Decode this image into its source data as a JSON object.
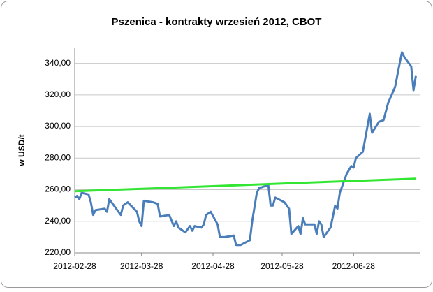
{
  "chart_data": {
    "type": "line",
    "title": "Pszenica - kontrakty wrzesień 2012, CBOT",
    "y_label": "w USD/t",
    "xlim": [
      "2012-02-28",
      "2012-07-27"
    ],
    "xticks": [
      "2012-02-28",
      "2012-03-28",
      "2012-04-28",
      "2012-05-28",
      "2012-06-28"
    ],
    "ylim": [
      220,
      350
    ],
    "yticks": [
      {
        "value": 220,
        "label": "220,00"
      },
      {
        "value": 240,
        "label": "240,00"
      },
      {
        "value": 260,
        "label": "260,00"
      },
      {
        "value": 280,
        "label": "280,00"
      },
      {
        "value": 300,
        "label": "300,00"
      },
      {
        "value": 320,
        "label": "320,00"
      },
      {
        "value": 340,
        "label": "340,00"
      }
    ],
    "grid": true,
    "series": [
      {
        "color": "#4a7ebb",
        "x": [
          "2012-02-28",
          "2012-02-29",
          "2012-03-01",
          "2012-03-02",
          "2012-03-05",
          "2012-03-06",
          "2012-03-07",
          "2012-03-08",
          "2012-03-12",
          "2012-03-13",
          "2012-03-14",
          "2012-03-16",
          "2012-03-19",
          "2012-03-20",
          "2012-03-22",
          "2012-03-26",
          "2012-03-27",
          "2012-03-28",
          "2012-03-29",
          "2012-04-02",
          "2012-04-04",
          "2012-04-05",
          "2012-04-09",
          "2012-04-11",
          "2012-04-12",
          "2012-04-13",
          "2012-04-16",
          "2012-04-18",
          "2012-04-19",
          "2012-04-20",
          "2012-04-23",
          "2012-04-24",
          "2012-04-25",
          "2012-04-27",
          "2012-04-30",
          "2012-05-01",
          "2012-05-03",
          "2012-05-07",
          "2012-05-08",
          "2012-05-10",
          "2012-05-14",
          "2012-05-15",
          "2012-05-17",
          "2012-05-18",
          "2012-05-22",
          "2012-05-23",
          "2012-05-24",
          "2012-05-25",
          "2012-05-29",
          "2012-05-31",
          "2012-06-01",
          "2012-06-04",
          "2012-06-05",
          "2012-06-06",
          "2012-06-07",
          "2012-06-08",
          "2012-06-11",
          "2012-06-12",
          "2012-06-13",
          "2012-06-14",
          "2012-06-15",
          "2012-06-18",
          "2012-06-20",
          "2012-06-21",
          "2012-06-22",
          "2012-06-25",
          "2012-06-27",
          "2012-06-28",
          "2012-06-29",
          "2012-07-02",
          "2012-07-05",
          "2012-07-06",
          "2012-07-09",
          "2012-07-11",
          "2012-07-13",
          "2012-07-16",
          "2012-07-18",
          "2012-07-19",
          "2012-07-20",
          "2012-07-23",
          "2012-07-24",
          "2012-07-25"
        ],
        "values": [
          255,
          256,
          254,
          258,
          257,
          252,
          244,
          247,
          248,
          246,
          254,
          250,
          244,
          250,
          252,
          246,
          240,
          237,
          253,
          252,
          251,
          243,
          244,
          237,
          240,
          236,
          233,
          237,
          234,
          237,
          236,
          238,
          244,
          246,
          238,
          230,
          230,
          231,
          225,
          225,
          228,
          240,
          258,
          261,
          263,
          250,
          250,
          255,
          252,
          248,
          232,
          237,
          232,
          242,
          238,
          238,
          238,
          232,
          240,
          238,
          230,
          236,
          250,
          248,
          258,
          270,
          275,
          274,
          280,
          284,
          308,
          296,
          303,
          304,
          315,
          325,
          340,
          347,
          344,
          338,
          323,
          332
        ]
      },
      {
        "color": "#33e633",
        "x": [
          "2012-02-28",
          "2012-07-25"
        ],
        "values": [
          259,
          267
        ]
      }
    ]
  }
}
